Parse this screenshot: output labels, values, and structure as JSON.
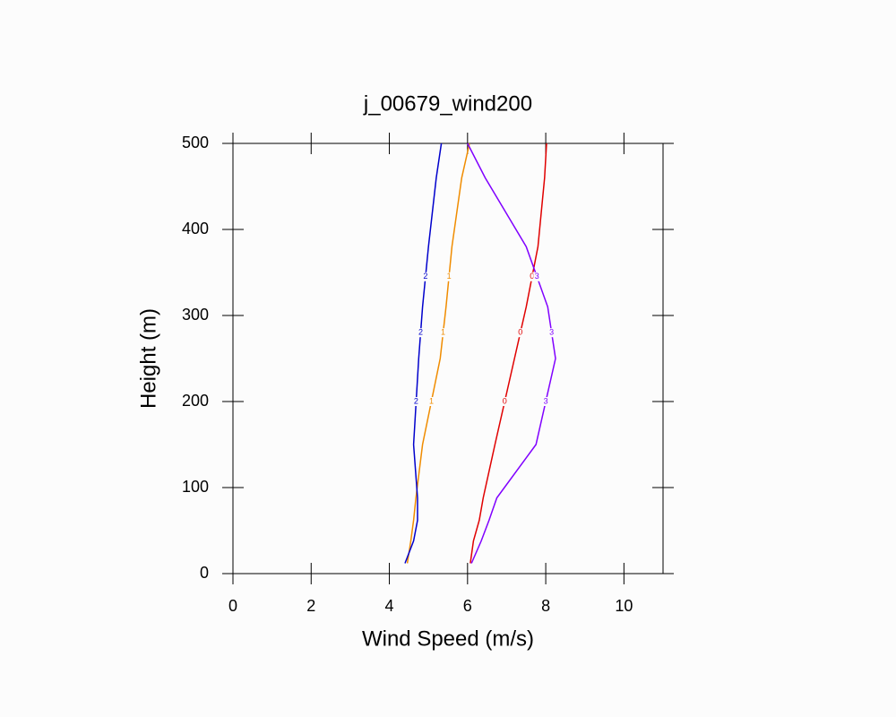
{
  "chart_data": {
    "type": "line",
    "title": "j_00679_wind200",
    "xlabel": "Wind Speed (m/s)",
    "ylabel": "Height (m)",
    "y": [
      12,
      38,
      62,
      88,
      150,
      250,
      310,
      380,
      460,
      500
    ],
    "series": [
      {
        "name": "0",
        "color": "#e00000",
        "values": [
          6.07,
          6.15,
          6.3,
          6.4,
          6.7,
          7.2,
          7.5,
          7.8,
          7.97,
          8.02
        ]
      },
      {
        "name": "1",
        "color": "#f08c00",
        "values": [
          4.46,
          4.55,
          4.62,
          4.68,
          4.85,
          5.3,
          5.45,
          5.6,
          5.85,
          6.05
        ]
      },
      {
        "name": "2",
        "color": "#0000cc",
        "values": [
          4.4,
          4.62,
          4.72,
          4.72,
          4.62,
          4.75,
          4.85,
          5.0,
          5.2,
          5.33
        ]
      },
      {
        "name": "3",
        "color": "#8000ff",
        "values": [
          6.1,
          6.35,
          6.55,
          6.75,
          7.75,
          8.25,
          8.05,
          7.5,
          6.45,
          6.0
        ]
      }
    ],
    "xlim": [
      0,
      11
    ],
    "xticks": [
      0,
      2,
      4,
      6,
      8,
      10
    ],
    "ylim": [
      0,
      500
    ],
    "yticks": [
      0,
      100,
      200,
      300,
      400,
      500
    ]
  }
}
